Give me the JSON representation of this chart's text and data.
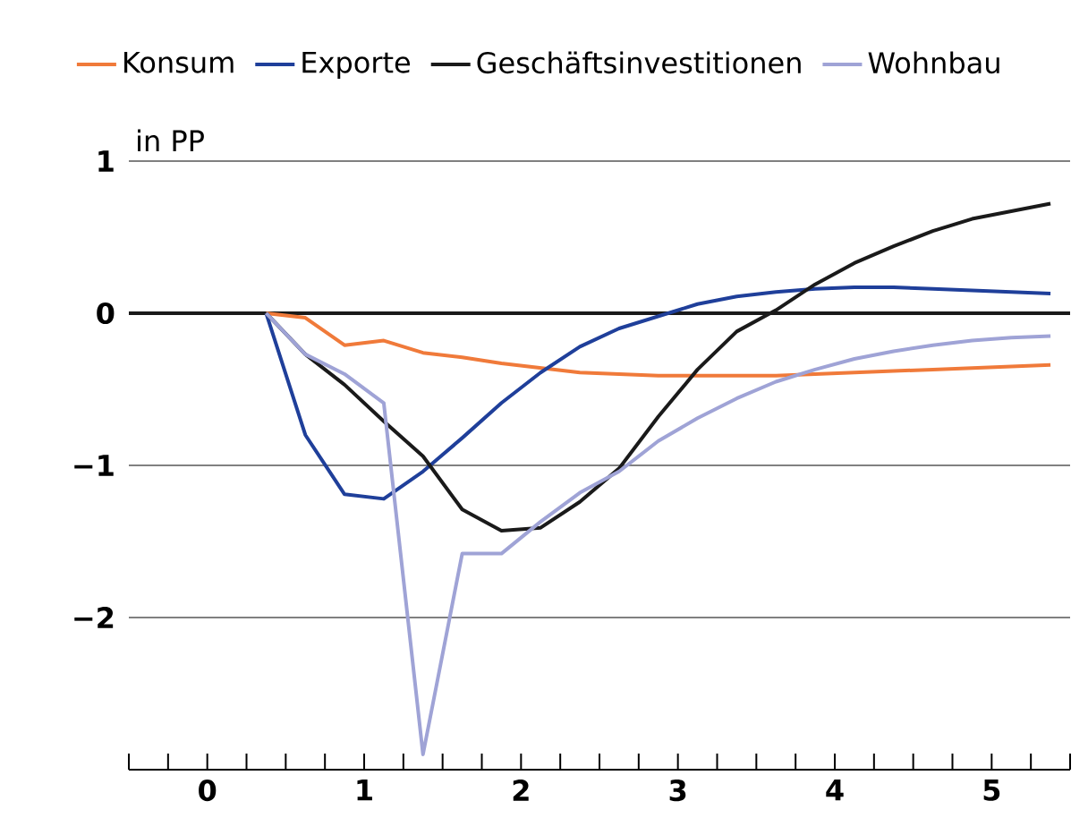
{
  "chart_data": {
    "type": "line",
    "ylabel": "in PP",
    "x": [
      0.375,
      0.625,
      0.875,
      1.125,
      1.375,
      1.625,
      1.875,
      2.125,
      2.375,
      2.625,
      2.875,
      3.125,
      3.375,
      3.625,
      3.875,
      4.125,
      4.375,
      4.625,
      4.875,
      5.125,
      5.375
    ],
    "series": [
      {
        "name": "Konsum",
        "color": "#f07a3a",
        "values": [
          0,
          -0.03,
          -0.21,
          -0.18,
          -0.26,
          -0.29,
          -0.33,
          -0.36,
          -0.39,
          -0.4,
          -0.41,
          -0.41,
          -0.41,
          -0.41,
          -0.4,
          -0.39,
          -0.38,
          -0.37,
          -0.36,
          -0.35,
          -0.34
        ]
      },
      {
        "name": "Exporte",
        "color": "#1f3f9a",
        "values": [
          0,
          -0.8,
          -1.19,
          -1.22,
          -1.04,
          -0.82,
          -0.59,
          -0.39,
          -0.22,
          -0.1,
          -0.02,
          0.06,
          0.11,
          0.14,
          0.16,
          0.17,
          0.17,
          0.16,
          0.15,
          0.14,
          0.13
        ]
      },
      {
        "name": "Geschäftsinvestitionen",
        "color": "#1a1a1a",
        "values": [
          0,
          -0.27,
          -0.47,
          -0.71,
          -0.94,
          -1.29,
          -1.43,
          -1.41,
          -1.24,
          -1.02,
          -0.68,
          -0.37,
          -0.12,
          0.02,
          0.19,
          0.33,
          0.44,
          0.54,
          0.62,
          0.67,
          0.72
        ]
      },
      {
        "name": "Wohnbau",
        "color": "#9fa3d6",
        "values": [
          0,
          -0.27,
          -0.4,
          -0.59,
          -2.9,
          -1.58,
          -1.58,
          -1.37,
          -1.18,
          -1.04,
          -0.84,
          -0.69,
          -0.56,
          -0.45,
          -0.37,
          -0.3,
          -0.25,
          -0.21,
          -0.18,
          -0.16,
          -0.15
        ]
      }
    ],
    "xlim": [
      -0.5,
      5.5
    ],
    "ylim": [
      -3,
      1
    ],
    "xticks": [
      {
        "value": -0.5,
        "label": null
      },
      {
        "value": -0.25,
        "label": null
      },
      0,
      {
        "value": 0.25,
        "label": null
      },
      {
        "value": 0.5,
        "label": null
      },
      {
        "value": 0.75,
        "label": null
      },
      1,
      {
        "value": 1.25,
        "label": null
      },
      {
        "value": 1.5,
        "label": null
      },
      {
        "value": 1.75,
        "label": null
      },
      2,
      {
        "value": 2.25,
        "label": null
      },
      {
        "value": 2.5,
        "label": null
      },
      {
        "value": 2.75,
        "label": null
      },
      3,
      {
        "value": 3.25,
        "label": null
      },
      {
        "value": 3.5,
        "label": null
      },
      {
        "value": 3.75,
        "label": null
      },
      4,
      {
        "value": 4.25,
        "label": null
      },
      {
        "value": 4.5,
        "label": null
      },
      {
        "value": 4.75,
        "label": null
      },
      5,
      {
        "value": 5.25,
        "label": null
      },
      {
        "value": 5.5,
        "label": null
      }
    ],
    "yticks": [
      {
        "value": -2,
        "label": "−2"
      },
      {
        "value": -1,
        "label": "−1"
      },
      0,
      1
    ],
    "grid": "y",
    "legend": "top",
    "marker": "none",
    "line_style": "solid",
    "ref_lines": [
      {
        "axis": "y",
        "value": 0,
        "color": "#1a1a1a"
      }
    ]
  }
}
